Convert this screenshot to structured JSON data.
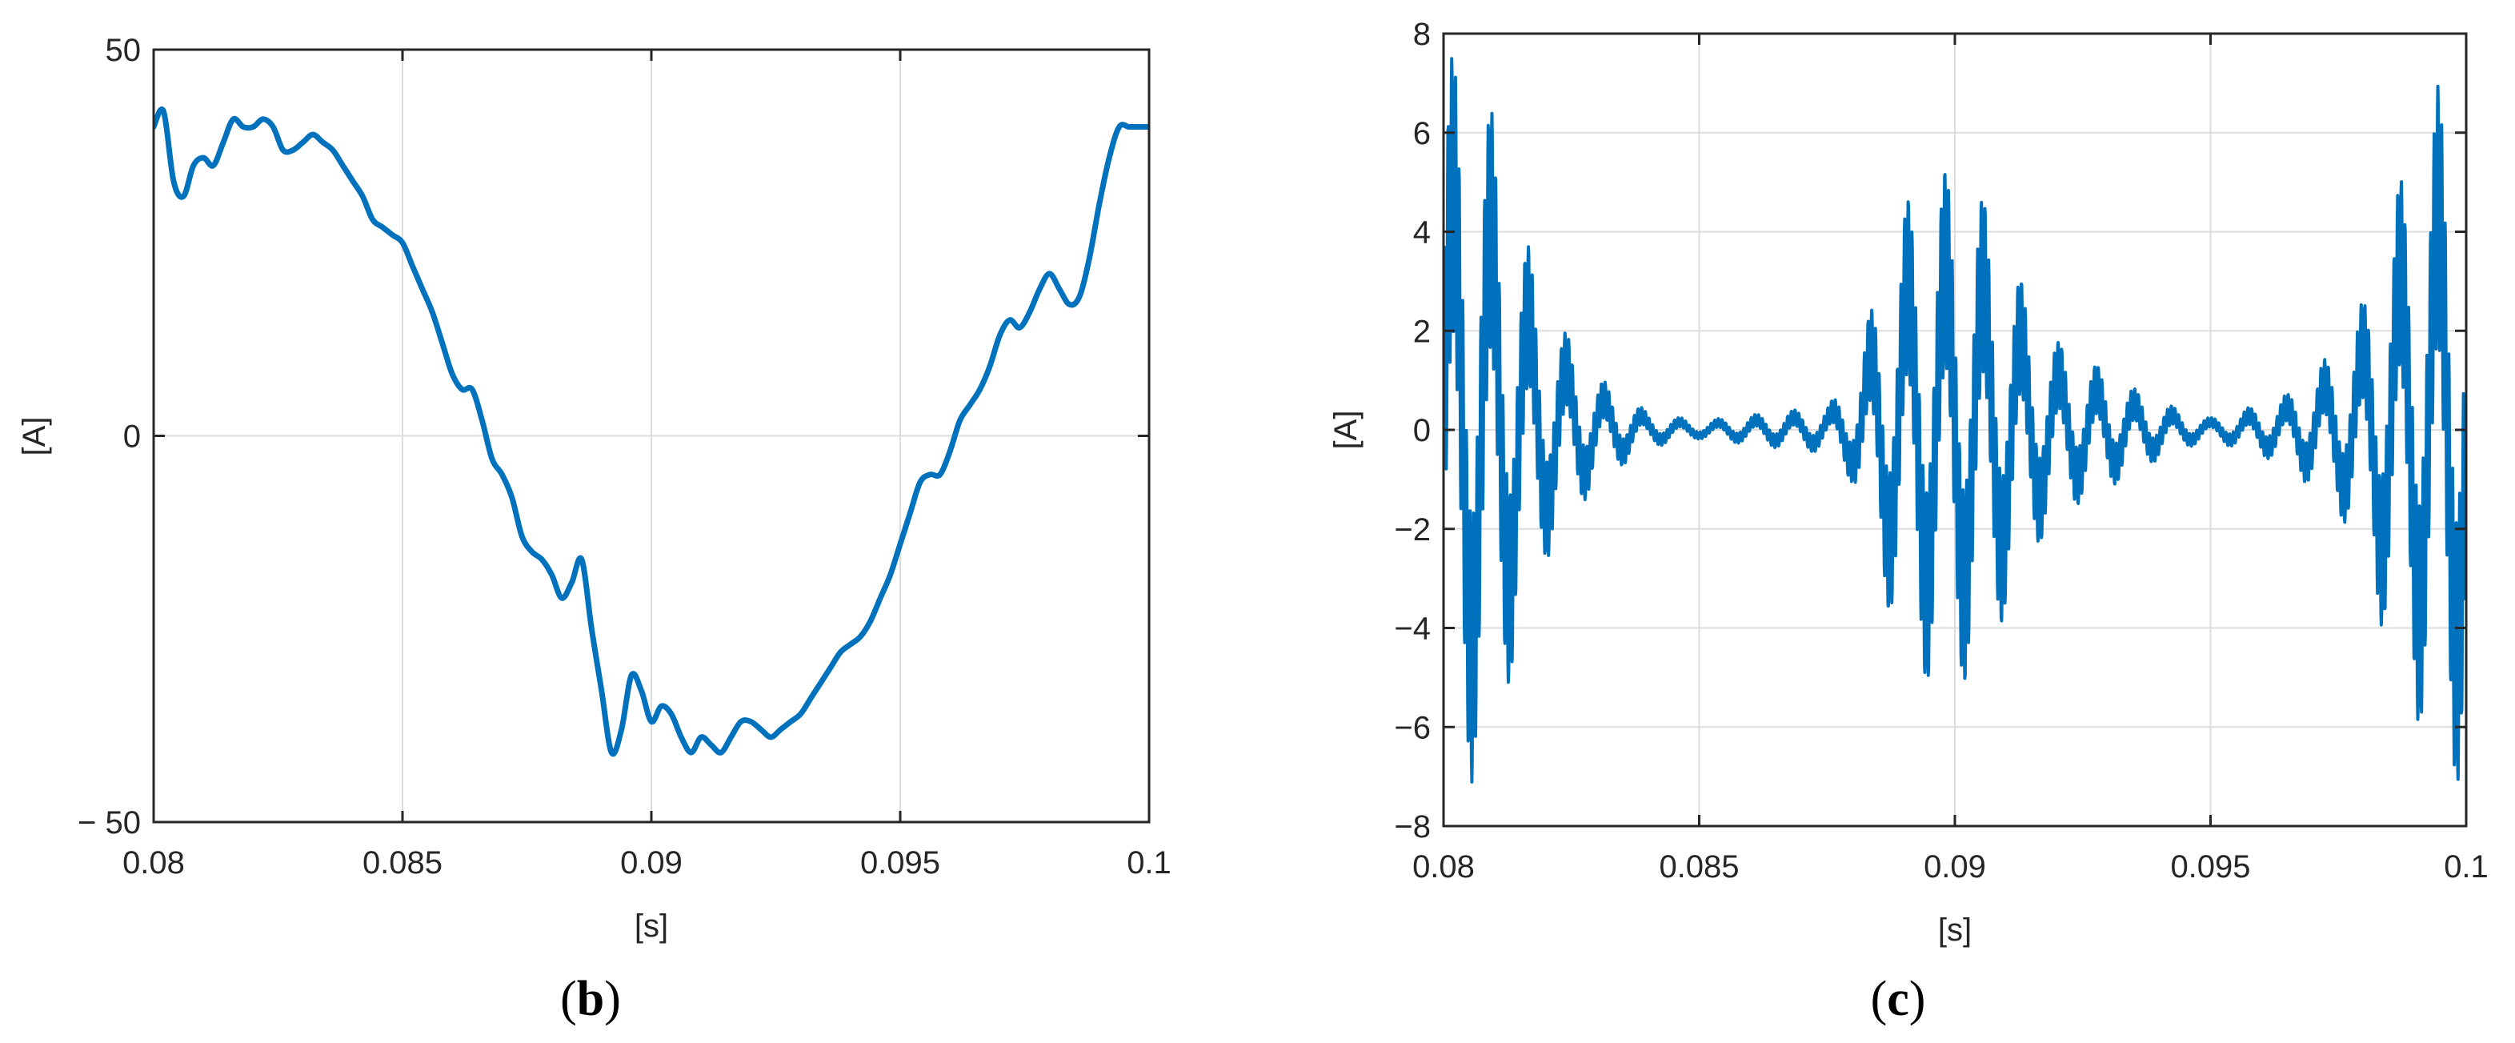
{
  "chart_data": [
    {
      "type": "line",
      "panel_label": "(b)",
      "panel_letter": "b",
      "xlabel": "[s]",
      "ylabel": "[A]",
      "xlim": [
        0.08,
        0.1
      ],
      "ylim": [
        -50,
        50
      ],
      "xticks": [
        "0.08",
        "0.085",
        "0.09",
        "0.095",
        "0.1"
      ],
      "yticks": [
        "− 50",
        "0",
        "50"
      ],
      "grid": true,
      "line_color": "#0072BD",
      "series": [
        {
          "x": [
            0.08,
            0.0802,
            0.0804,
            0.0806,
            0.0808,
            0.081,
            0.0812,
            0.0814,
            0.0816,
            0.0818,
            0.082,
            0.0822,
            0.0824,
            0.0826,
            0.0828,
            0.083,
            0.0832,
            0.0834,
            0.0836,
            0.0838,
            0.084,
            0.0842,
            0.0844,
            0.0846,
            0.0848,
            0.085,
            0.0852,
            0.0854,
            0.0856,
            0.0858,
            0.086,
            0.0862,
            0.0864,
            0.0866,
            0.0868,
            0.087,
            0.0872,
            0.0874,
            0.0876,
            0.0878,
            0.088,
            0.0882,
            0.0884,
            0.0886,
            0.0888,
            0.089,
            0.0892,
            0.0894,
            0.0896,
            0.0898,
            0.09,
            0.0902,
            0.0904,
            0.0906,
            0.0908,
            0.091,
            0.0912,
            0.0914,
            0.0916,
            0.0918,
            0.092,
            0.0922,
            0.0924,
            0.0926,
            0.0928,
            0.093,
            0.0932,
            0.0934,
            0.0936,
            0.0938,
            0.094,
            0.0942,
            0.0944,
            0.0946,
            0.0948,
            0.095,
            0.0952,
            0.0954,
            0.0956,
            0.0958,
            0.096,
            0.0962,
            0.0964,
            0.0966,
            0.0968,
            0.097,
            0.0972,
            0.0974,
            0.0976,
            0.0978,
            0.098,
            0.0982,
            0.0984,
            0.0986,
            0.0988,
            0.099,
            0.0992,
            0.0994,
            0.0996,
            0.0998,
            0.1
          ],
          "y": [
            40,
            42,
            33,
            31,
            35,
            36,
            35,
            38,
            41,
            40,
            40,
            41,
            40,
            37,
            37,
            38,
            39,
            38,
            37,
            35,
            33,
            31,
            28,
            27,
            26,
            25,
            22,
            19,
            16,
            12,
            8,
            6,
            6,
            2,
            -3,
            -5,
            -8,
            -13,
            -15,
            -16,
            -18,
            -21,
            -19,
            -16,
            -25,
            -33,
            -41,
            -38,
            -31,
            -33,
            -37,
            -35,
            -36,
            -39,
            -41,
            -39,
            -40,
            -41,
            -39,
            -37,
            -37,
            -38,
            -39,
            -38,
            -37,
            -36,
            -34,
            -32,
            -30,
            -28,
            -27,
            -26,
            -24,
            -21,
            -18,
            -14,
            -10,
            -6,
            -5,
            -5,
            -2,
            2,
            4,
            6,
            9,
            13,
            15,
            14,
            16,
            19,
            21,
            19,
            17,
            18,
            23,
            30,
            36,
            40,
            40,
            40,
            40
          ]
        }
      ]
    },
    {
      "type": "line",
      "panel_label": "(c)",
      "panel_letter": "c",
      "xlabel": "[s]",
      "ylabel": "[A]",
      "xlim": [
        0.08,
        0.1
      ],
      "ylim": [
        -8,
        8
      ],
      "xticks": [
        "0.08",
        "0.085",
        "0.09",
        "0.095",
        "0.1"
      ],
      "yticks": [
        "−8",
        "−6",
        "−4",
        "−2",
        "0",
        "2",
        "4",
        "6",
        "8"
      ],
      "grid": true,
      "line_color": "#0072BD",
      "envelope": {
        "x": [
          0.08,
          0.0802,
          0.0805,
          0.081,
          0.0815,
          0.082,
          0.0825,
          0.083,
          0.0835,
          0.084,
          0.085,
          0.0855,
          0.086,
          0.0865,
          0.087,
          0.0875,
          0.088,
          0.0885,
          0.089,
          0.0895,
          0.09,
          0.0905,
          0.091,
          0.0915,
          0.092,
          0.0925,
          0.093,
          0.0935,
          0.094,
          0.0945,
          0.095,
          0.0955,
          0.096,
          0.0965,
          0.097,
          0.0975,
          0.098,
          0.0985,
          0.099,
          0.0995,
          0.1
        ],
        "amplitude": [
          6.5,
          6.3,
          6.0,
          5.3,
          3.5,
          2.2,
          1.5,
          0.9,
          0.6,
          0.3,
          0.15,
          0.2,
          0.25,
          0.3,
          0.35,
          0.4,
          0.9,
          2.5,
          3.8,
          4.3,
          4.4,
          4.0,
          3.1,
          2.1,
          1.5,
          1.2,
          1.0,
          0.7,
          0.5,
          0.3,
          0.2,
          0.3,
          0.45,
          0.6,
          1.0,
          1.4,
          2.2,
          3.8,
          4.8,
          5.9,
          6.0
        ]
      }
    }
  ]
}
